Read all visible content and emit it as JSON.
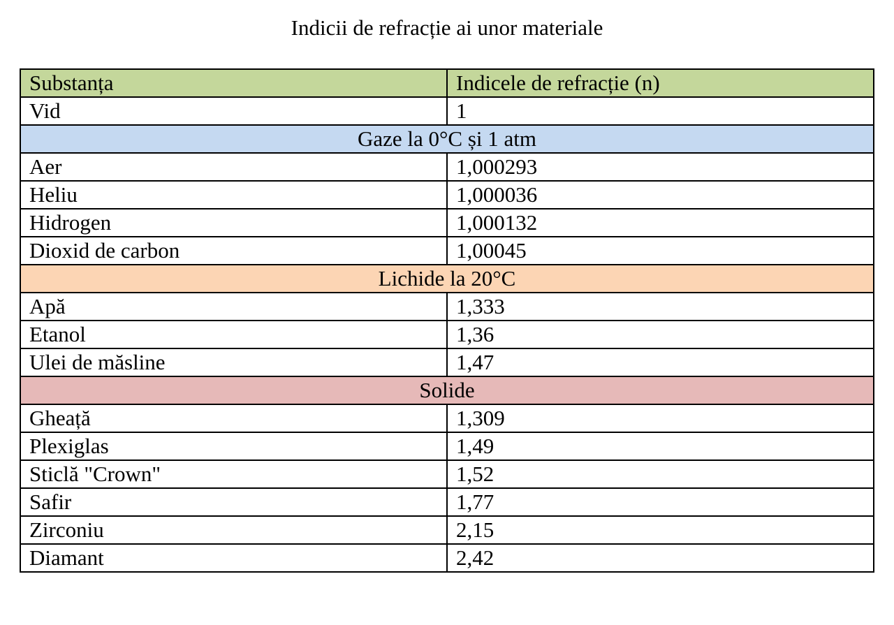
{
  "title": "Indicii de refracție ai unor materiale",
  "colors": {
    "header_bg": "#c4d79b",
    "gases_bg": "#c5d9f1",
    "liquids_bg": "#fcd5b4",
    "solids_bg": "#e6b9b8",
    "border": "#000000"
  },
  "table": {
    "headers": [
      "Substanța",
      "Indicele de refracție (n)"
    ],
    "rows": [
      {
        "type": "data",
        "name": "Vid",
        "value": "1"
      },
      {
        "type": "section",
        "label": "Gaze la 0°C și 1 atm",
        "color": "#c5d9f1"
      },
      {
        "type": "data",
        "name": "Aer",
        "value": "1,000293"
      },
      {
        "type": "data",
        "name": "Heliu",
        "value": "1,000036"
      },
      {
        "type": "data",
        "name": "Hidrogen",
        "value": "1,000132"
      },
      {
        "type": "data",
        "name": "Dioxid de carbon",
        "value": "1,00045"
      },
      {
        "type": "section",
        "label": "Lichide la 20°C",
        "color": "#fcd5b4"
      },
      {
        "type": "data",
        "name": "Apă",
        "value": "1,333"
      },
      {
        "type": "data",
        "name": "Etanol",
        "value": "1,36"
      },
      {
        "type": "data",
        "name": "Ulei de măsline",
        "value": "1,47"
      },
      {
        "type": "section",
        "label": "Solide",
        "color": "#e6b9b8"
      },
      {
        "type": "data",
        "name": "Gheață",
        "value": "1,309"
      },
      {
        "type": "data",
        "name": "Plexiglas",
        "value": "1,49"
      },
      {
        "type": "data",
        "name": "Sticlă \"Crown\"",
        "value": "1,52"
      },
      {
        "type": "data",
        "name": "Safir",
        "value": "1,77"
      },
      {
        "type": "data",
        "name": "Zirconiu",
        "value": "2,15"
      },
      {
        "type": "data",
        "name": "Diamant",
        "value": "2,42"
      }
    ]
  }
}
